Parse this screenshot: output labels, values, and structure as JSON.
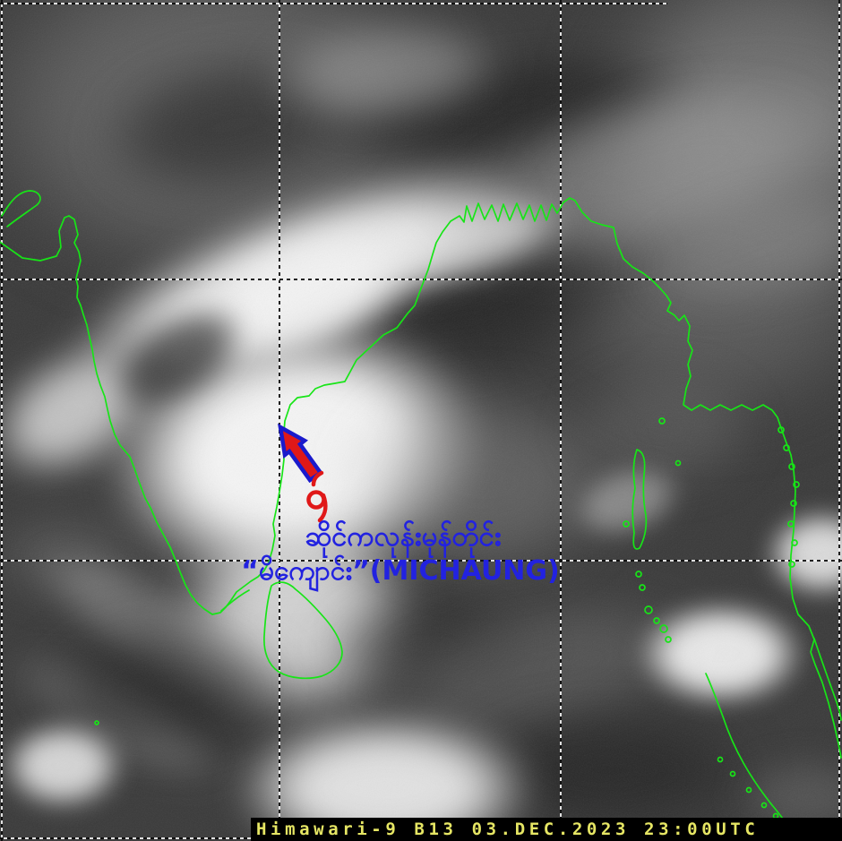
{
  "caption": {
    "text": "Himawari-9 B13 03.DEC.2023 23:00UTC",
    "satellite": "Himawari-9",
    "band": "B13",
    "date": "03.DEC.2023",
    "time": "23:00UTC",
    "text_color": "#e6e664",
    "background_color": "#000000"
  },
  "cyclone_label": {
    "line1": "ဆိုင်ကလုန်းမုန်တိုင်း",
    "line2": "“မိကျောင်း”(MICHAUNG)",
    "name_english": "MICHAUNG",
    "text_color": "#2222e0"
  },
  "cyclone_marker": {
    "symbol": "၉",
    "symbol_color": "#e01818",
    "arrow_direction": "northwest",
    "arrow_fill_color": "#e01818",
    "arrow_outline_color": "#1a1acc"
  },
  "overlay": {
    "coastline_color": "#17e517",
    "grid_dash_colors": [
      "#000000",
      "#ffffff"
    ]
  }
}
